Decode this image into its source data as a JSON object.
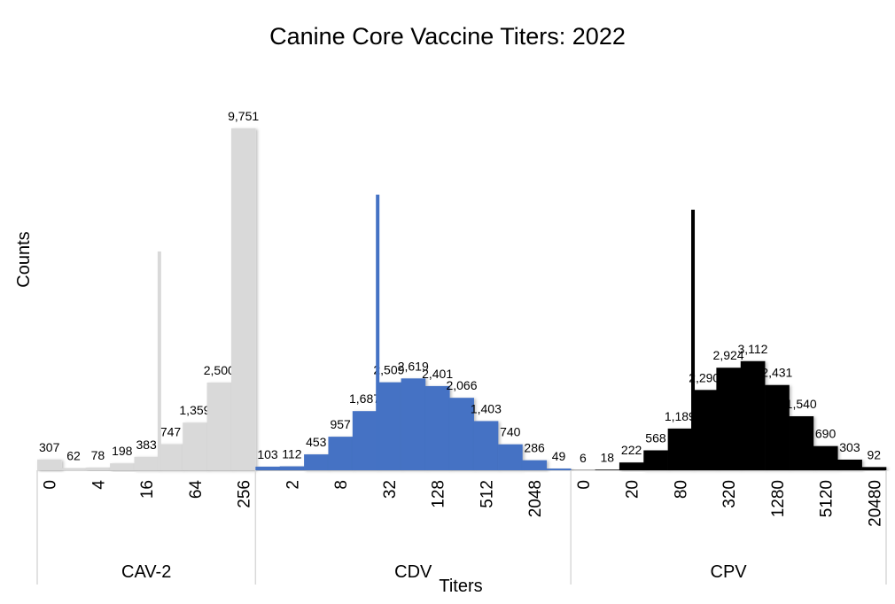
{
  "chart_data": {
    "type": "bar",
    "title": "Canine Core Vaccine Titers: 2022",
    "xlabel": "Titers",
    "ylabel": "Counts",
    "ylim": [
      0,
      10000
    ],
    "grid": false,
    "legend": "none",
    "groups": [
      {
        "name": "CAV-2",
        "color": "#d9d9d9",
        "tick_labels": [
          "0",
          "",
          "4",
          "",
          "16",
          "",
          "64",
          "",
          "256"
        ],
        "values": [
          307,
          62,
          78,
          198,
          383,
          747,
          1359,
          2500,
          9751
        ],
        "labels": [
          "307",
          "62",
          "78",
          "198",
          "383",
          "747",
          "1,359",
          "2,500",
          "9,751"
        ],
        "spike": {
          "position_after_bar": 5,
          "value": 6240
        }
      },
      {
        "name": "CDV",
        "color": "#4472c4",
        "tick_labels": [
          "",
          "2",
          "",
          "8",
          "",
          "32",
          "",
          "128",
          "",
          "512",
          "",
          "2048",
          ""
        ],
        "values": [
          103,
          112,
          453,
          957,
          1687,
          2509,
          2619,
          2401,
          2066,
          1403,
          740,
          286,
          49
        ],
        "labels": [
          "103",
          "112",
          "453",
          "957",
          "1,687",
          "2,509",
          "2,619",
          "2,401",
          "2,066",
          "1,403",
          "740",
          "286",
          "49"
        ],
        "spike": {
          "position_after_bar": 5,
          "value": 7860
        }
      },
      {
        "name": "CPV",
        "color": "#000000",
        "tick_labels": [
          "0",
          "",
          "20",
          "",
          "80",
          "",
          "320",
          "",
          "1280",
          "",
          "5120",
          "",
          "20480"
        ],
        "values": [
          6,
          18,
          222,
          568,
          1189,
          2290,
          2924,
          3112,
          2431,
          1540,
          690,
          303,
          92
        ],
        "labels": [
          "6",
          "18",
          "222",
          "568",
          "1,189",
          "2,290",
          "2,924",
          "3,112",
          "2,431",
          "1,540",
          "690",
          "303",
          "92"
        ],
        "spike": {
          "position_after_bar": 5,
          "value": 7430
        }
      }
    ]
  }
}
